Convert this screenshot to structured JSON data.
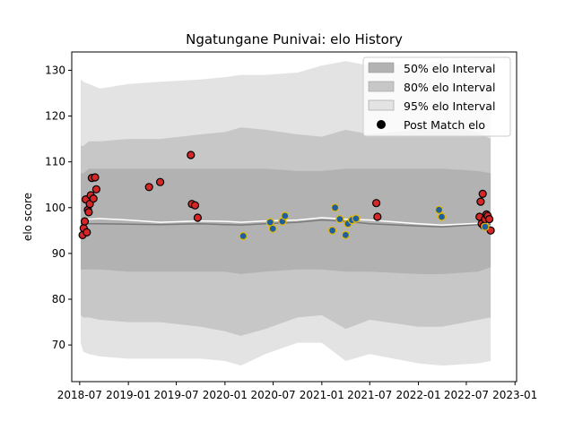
{
  "chart_data": {
    "type": "line",
    "title": "Ngatungane Punivai: elo History",
    "xlabel": "",
    "ylabel": "elo score",
    "x_range": [
      "2018-06-01",
      "2023-01-07"
    ],
    "ylim": [
      62,
      134
    ],
    "x_ticks": [
      {
        "date": "2018-07-01",
        "label": "2018-07"
      },
      {
        "date": "2019-01-01",
        "label": "2019-01"
      },
      {
        "date": "2019-07-01",
        "label": "2019-07"
      },
      {
        "date": "2020-01-01",
        "label": "2020-01"
      },
      {
        "date": "2020-07-01",
        "label": "2020-07"
      },
      {
        "date": "2021-01-01",
        "label": "2021-01"
      },
      {
        "date": "2021-07-01",
        "label": "2021-07"
      },
      {
        "date": "2022-01-01",
        "label": "2022-01"
      },
      {
        "date": "2022-07-01",
        "label": "2022-07"
      },
      {
        "date": "2023-01-01",
        "label": "2023-01"
      }
    ],
    "y_ticks": [
      70,
      80,
      90,
      100,
      110,
      120,
      130
    ],
    "grid": false,
    "legend": {
      "position": "top-right",
      "entries": [
        {
          "label": "50% elo Interval",
          "kind": "band",
          "color": "#b2b2b2"
        },
        {
          "label": "80% elo Interval",
          "kind": "band",
          "color": "#c7c7c7"
        },
        {
          "label": "95% elo Interval",
          "kind": "band",
          "color": "#e3e3e3"
        },
        {
          "label": "Post Match elo",
          "kind": "marker",
          "color": "#000000"
        }
      ]
    },
    "colors": {
      "band50": "#b2b2b2",
      "band80": "#c7c7c7",
      "band95": "#e3e3e3",
      "median_line": "#7a7a7a",
      "mean_line": "#ffffff",
      "red_point_fill": "#d62728",
      "red_point_edge": "#000000",
      "blue_point_fill": "#1f5f9f",
      "blue_point_edge": "#e6b800"
    },
    "bands": [
      {
        "date": "2018-07-05",
        "mean": 97.3,
        "median": 96.5,
        "p50": [
          86.5,
          107.5
        ],
        "p80": [
          76.5,
          113.5
        ],
        "p95": [
          70.5,
          128.0
        ]
      },
      {
        "date": "2018-07-15",
        "mean": 97.5,
        "median": 96.5,
        "p50": [
          86.5,
          107.5
        ],
        "p80": [
          76.0,
          113.5
        ],
        "p95": [
          68.5,
          127.5
        ]
      },
      {
        "date": "2018-08-05",
        "mean": 97.5,
        "median": 96.5,
        "p50": [
          86.5,
          108.5
        ],
        "p80": [
          76.0,
          114.5
        ],
        "p95": [
          68.0,
          127.0
        ]
      },
      {
        "date": "2018-09-15",
        "mean": 97.6,
        "median": 96.5,
        "p50": [
          86.5,
          108.5
        ],
        "p80": [
          75.5,
          114.5
        ],
        "p95": [
          67.5,
          126.0
        ]
      },
      {
        "date": "2019-01-01",
        "mean": 97.3,
        "median": 96.4,
        "p50": [
          86.0,
          108.5
        ],
        "p80": [
          75.0,
          115.0
        ],
        "p95": [
          67.0,
          127.0
        ]
      },
      {
        "date": "2019-05-01",
        "mean": 96.8,
        "median": 96.3,
        "p50": [
          86.0,
          108.5
        ],
        "p80": [
          75.0,
          115.0
        ],
        "p95": [
          67.0,
          127.5
        ]
      },
      {
        "date": "2019-10-01",
        "mean": 97.1,
        "median": 96.5,
        "p50": [
          86.0,
          108.5
        ],
        "p80": [
          74.0,
          116.0
        ],
        "p95": [
          67.0,
          128.0
        ]
      },
      {
        "date": "2020-01-01",
        "mean": 97.0,
        "median": 96.3,
        "p50": [
          86.0,
          108.5
        ],
        "p80": [
          73.0,
          116.5
        ],
        "p95": [
          66.5,
          128.5
        ]
      },
      {
        "date": "2020-03-01",
        "mean": 96.8,
        "median": 96.2,
        "p50": [
          85.5,
          108.5
        ],
        "p80": [
          72.0,
          117.5
        ],
        "p95": [
          65.5,
          129.0
        ]
      },
      {
        "date": "2020-06-01",
        "mean": 97.1,
        "median": 96.5,
        "p50": [
          86.0,
          108.5
        ],
        "p80": [
          73.5,
          117.0
        ],
        "p95": [
          68.0,
          129.0
        ]
      },
      {
        "date": "2020-10-01",
        "mean": 97.3,
        "median": 96.8,
        "p50": [
          86.5,
          108.0
        ],
        "p80": [
          76.0,
          116.0
        ],
        "p95": [
          70.5,
          129.5
        ]
      },
      {
        "date": "2021-01-01",
        "mean": 97.8,
        "median": 97.3,
        "p50": [
          86.5,
          108.0
        ],
        "p80": [
          76.5,
          115.5
        ],
        "p95": [
          70.5,
          131.0
        ]
      },
      {
        "date": "2021-04-01",
        "mean": 97.5,
        "median": 97.0,
        "p50": [
          86.0,
          108.5
        ],
        "p80": [
          73.5,
          117.0
        ],
        "p95": [
          66.5,
          132.0
        ]
      },
      {
        "date": "2021-07-01",
        "mean": 97.3,
        "median": 96.5,
        "p50": [
          86.0,
          108.5
        ],
        "p80": [
          75.5,
          116.0
        ],
        "p95": [
          68.0,
          131.0
        ]
      },
      {
        "date": "2022-01-01",
        "mean": 96.5,
        "median": 96.0,
        "p50": [
          85.5,
          108.5
        ],
        "p80": [
          74.0,
          117.0
        ],
        "p95": [
          66.0,
          131.5
        ]
      },
      {
        "date": "2022-04-01",
        "mean": 96.2,
        "median": 95.8,
        "p50": [
          85.5,
          108.5
        ],
        "p80": [
          74.0,
          118.0
        ],
        "p95": [
          65.5,
          132.0
        ]
      },
      {
        "date": "2022-08-15",
        "mean": 96.6,
        "median": 96.3,
        "p50": [
          86.0,
          108.0
        ],
        "p80": [
          75.5,
          116.5
        ],
        "p95": [
          66.0,
          132.5
        ]
      },
      {
        "date": "2022-10-01",
        "mean": 96.8,
        "median": 96.4,
        "p50": [
          87.0,
          107.5
        ],
        "p80": [
          76.0,
          115.0
        ],
        "p95": [
          66.5,
          132.5
        ]
      }
    ],
    "series": [
      {
        "marker": "red",
        "points": [
          {
            "date": "2018-07-12",
            "elo": 94.0
          },
          {
            "date": "2018-07-16",
            "elo": 95.5
          },
          {
            "date": "2018-07-20",
            "elo": 97.0
          },
          {
            "date": "2018-07-24",
            "elo": 101.8
          },
          {
            "date": "2018-07-28",
            "elo": 94.6
          },
          {
            "date": "2018-08-01",
            "elo": 99.5
          },
          {
            "date": "2018-08-04",
            "elo": 99.0
          },
          {
            "date": "2018-08-08",
            "elo": 100.8
          },
          {
            "date": "2018-08-12",
            "elo": 102.7
          },
          {
            "date": "2018-08-16",
            "elo": 106.5
          },
          {
            "date": "2018-08-22",
            "elo": 102.0
          },
          {
            "date": "2018-08-28",
            "elo": 106.6
          },
          {
            "date": "2018-09-02",
            "elo": 104.0
          },
          {
            "date": "2019-03-20",
            "elo": 104.5
          },
          {
            "date": "2019-05-01",
            "elo": 105.6
          },
          {
            "date": "2019-08-25",
            "elo": 111.5
          },
          {
            "date": "2019-08-29",
            "elo": 100.8
          },
          {
            "date": "2019-09-10",
            "elo": 100.5
          },
          {
            "date": "2019-09-20",
            "elo": 97.8
          },
          {
            "date": "2021-07-26",
            "elo": 101.0
          },
          {
            "date": "2021-07-30",
            "elo": 98.0
          },
          {
            "date": "2022-08-20",
            "elo": 98.0
          },
          {
            "date": "2022-08-24",
            "elo": 101.3
          },
          {
            "date": "2022-08-28",
            "elo": 96.5
          },
          {
            "date": "2022-09-01",
            "elo": 103.0
          },
          {
            "date": "2022-09-05",
            "elo": 96.0
          },
          {
            "date": "2022-09-10",
            "elo": 97.5
          },
          {
            "date": "2022-09-15",
            "elo": 98.5
          },
          {
            "date": "2022-09-20",
            "elo": 98.2
          },
          {
            "date": "2022-09-26",
            "elo": 97.5
          },
          {
            "date": "2022-10-01",
            "elo": 95.0
          }
        ]
      },
      {
        "marker": "blue",
        "points": [
          {
            "date": "2020-03-10",
            "elo": 93.8
          },
          {
            "date": "2020-06-20",
            "elo": 96.8
          },
          {
            "date": "2020-06-30",
            "elo": 95.4
          },
          {
            "date": "2020-08-05",
            "elo": 97.0
          },
          {
            "date": "2020-08-15",
            "elo": 98.2
          },
          {
            "date": "2021-02-10",
            "elo": 95.0
          },
          {
            "date": "2021-02-20",
            "elo": 100.0
          },
          {
            "date": "2021-03-10",
            "elo": 97.5
          },
          {
            "date": "2021-04-01",
            "elo": 94.0
          },
          {
            "date": "2021-04-10",
            "elo": 96.5
          },
          {
            "date": "2021-04-25",
            "elo": 97.3
          },
          {
            "date": "2021-05-10",
            "elo": 97.6
          },
          {
            "date": "2022-03-20",
            "elo": 99.5
          },
          {
            "date": "2022-03-30",
            "elo": 98.0
          },
          {
            "date": "2022-09-10",
            "elo": 95.8
          }
        ]
      }
    ]
  }
}
